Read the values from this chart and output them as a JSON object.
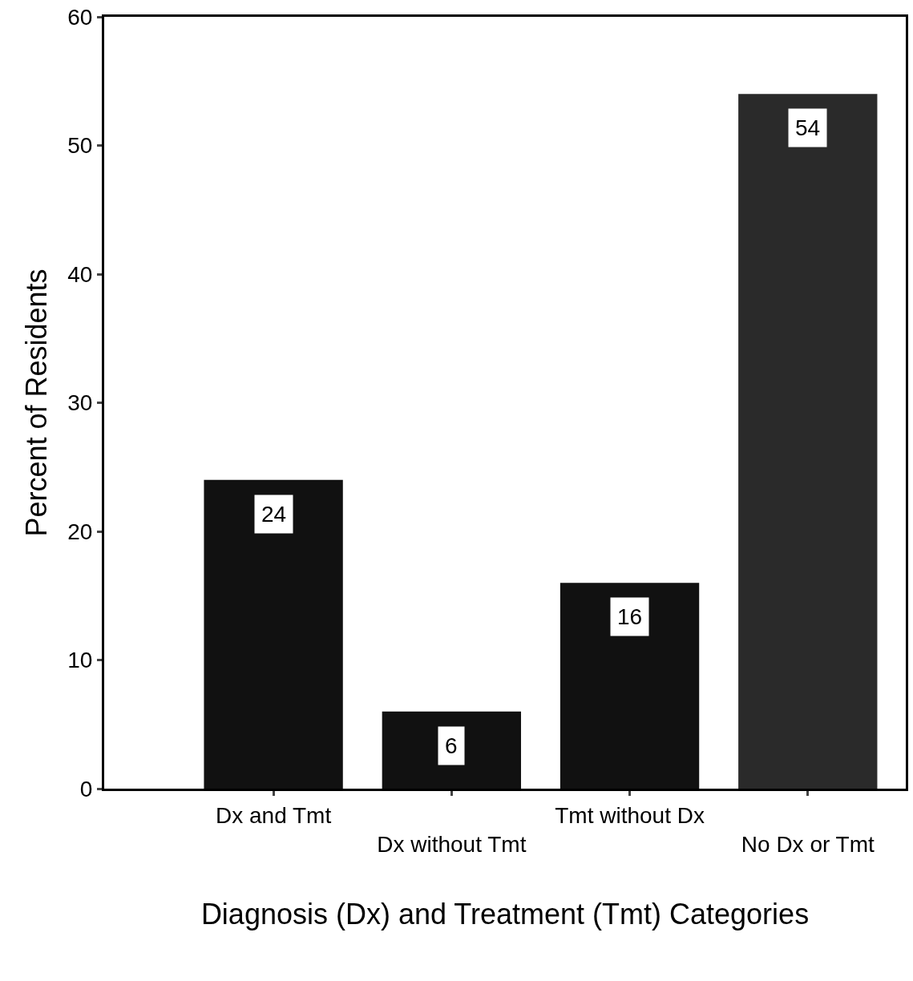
{
  "chart_data": {
    "type": "bar",
    "xlabel": "Diagnosis (Dx) and Treatment (Tmt) Categories",
    "ylabel": "Percent of Residents",
    "categories": [
      "Dx and Tmt",
      "Dx without Tmt",
      "Tmt without Dx",
      "No Dx or Tmt"
    ],
    "values": [
      24,
      6,
      16,
      54
    ],
    "colors": [
      "#111111",
      "#111111",
      "#111111",
      "#2a2a2a"
    ],
    "ylim": [
      0,
      60
    ],
    "yticks": [
      0,
      10,
      20,
      30,
      40,
      50,
      60
    ],
    "data_labels": true
  }
}
